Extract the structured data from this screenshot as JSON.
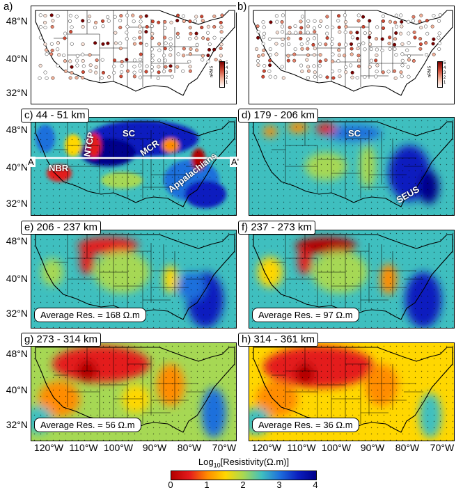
{
  "panels": [
    {
      "id": "a",
      "label": "a)"
    },
    {
      "id": "b",
      "label": "b)"
    },
    {
      "id": "c",
      "label": "c) 44 - 51 km"
    },
    {
      "id": "d",
      "label": "d) 179 - 206 km"
    },
    {
      "id": "e",
      "label": "e) 206 - 237 km",
      "avg": "Average Res. = 168 Ω.m"
    },
    {
      "id": "f",
      "label": "f) 237 - 273 km",
      "avg": "Average Res. = 97 Ω.m"
    },
    {
      "id": "g",
      "label": "g) 273 - 314 km",
      "avg": "Average Res. = 56 Ω.m"
    },
    {
      "id": "h",
      "label": "h) 314 - 361 km",
      "avg": "Average Res. = 36 Ω.m"
    }
  ],
  "lat_labels": [
    "48°N",
    "40°N",
    "32°N"
  ],
  "lon_labels": [
    "120°W",
    "110°W",
    "100°W",
    "90°W",
    "80°W",
    "70°W"
  ],
  "regions_c": {
    "ntcp": "NTCP",
    "sc": "SC",
    "mcr": "MCR",
    "nbr": "NBR",
    "appalachians": "Appalachians"
  },
  "regions_d": {
    "sc": "SC",
    "seus": "SEUS"
  },
  "profile": {
    "start": "A",
    "end": "A'"
  },
  "rms_legend": {
    "label": "nRMS",
    "ticks": [
      "5",
      "4",
      "3",
      "2",
      "1"
    ]
  },
  "colorbar": {
    "title_pre": "Log",
    "title_sub": "10",
    "title_post": "[Resistivity(Ω.m)]",
    "ticks": [
      "0",
      "1",
      "2",
      "3",
      "4"
    ],
    "colors": [
      "#b30000",
      "#ff8c00",
      "#ffd700",
      "#3fbfbf",
      "#00008b"
    ]
  }
}
